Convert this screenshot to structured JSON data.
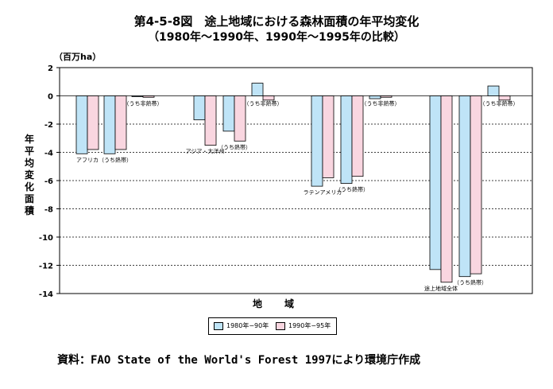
{
  "colors": {
    "series1": "#bfe4f7",
    "series2": "#f9d6e0",
    "stroke": "#000000"
  },
  "chart_data": {
    "type": "bar",
    "title": "第4-5-8図　途上地域における森林面積の年平均変化",
    "subtitle": "（1980年～1990年、1990年～1995年の比較）",
    "unit_label": "（百万ha）",
    "ylabel": "年平均変化面積",
    "xlabel": "地　域",
    "ylim": [
      -14,
      2
    ],
    "yticks": [
      2,
      0,
      -2,
      -4,
      -6,
      -8,
      -10,
      -12,
      -14
    ],
    "grid": true,
    "legend_position": "bottom-center",
    "categories": [
      "アフリカ",
      "（うち熱帯）",
      "（うち非熱帯）",
      "アジア・大洋州",
      "（うち熱帯）",
      "（うち非熱帯）",
      "ラテンアメリカ",
      "（うち熱帯）",
      "（うち非熱帯）",
      "途上地域全体",
      "（うち熱帯）",
      "（うち非熱帯）"
    ],
    "series": [
      {
        "name": "1980年−90年",
        "values": [
          -4.1,
          -4.1,
          -0.05,
          -1.7,
          -2.5,
          0.9,
          -6.4,
          -6.2,
          -0.2,
          -12.3,
          -12.8,
          0.7
        ]
      },
      {
        "name": "1990年−95年",
        "values": [
          -3.8,
          -3.8,
          -0.1,
          -3.5,
          -3.2,
          -0.3,
          -5.8,
          -5.7,
          -0.1,
          -13.2,
          -12.6,
          -0.3
        ]
      }
    ]
  },
  "source": "資料：FAO State of the World's Forest 1997により環境庁作成"
}
